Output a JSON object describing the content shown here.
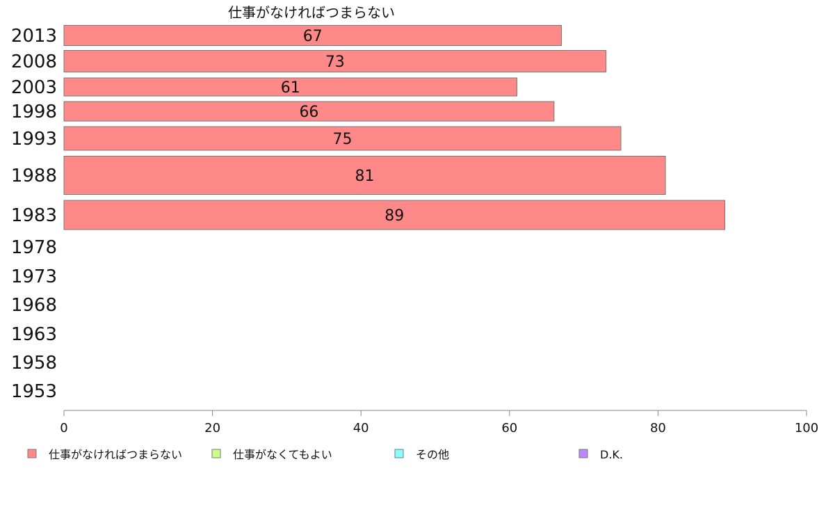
{
  "chart_data": {
    "type": "bar",
    "orientation": "horizontal",
    "title": "仕事がなければつまらない",
    "categories": [
      "2013",
      "2008",
      "2003",
      "1998",
      "1993",
      "1988",
      "1983",
      "1978",
      "1973",
      "1968",
      "1963",
      "1958",
      "1953"
    ],
    "series": [
      {
        "name": "仕事がなければつまらない",
        "color": "#ff8888",
        "values": [
          67,
          73,
          61,
          66,
          75,
          81,
          89,
          null,
          null,
          null,
          null,
          null,
          null
        ]
      }
    ],
    "xlim": [
      0,
      100
    ],
    "xticks": [
      0,
      20,
      40,
      60,
      80,
      100
    ],
    "legend": {
      "placement": "bottom",
      "items": [
        {
          "label": "仕事がなければつまらない",
          "color": "#ff8888"
        },
        {
          "label": "仕事がなくてもよい",
          "color": "#ccff88"
        },
        {
          "label": "その他",
          "color": "#88ffff"
        },
        {
          "label": "D.K.",
          "color": "#bb88ff"
        }
      ]
    },
    "grid": false
  }
}
